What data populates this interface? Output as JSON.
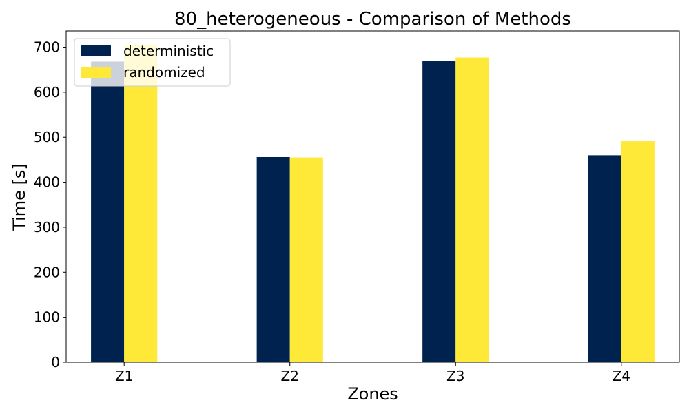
{
  "chart_data": {
    "type": "bar",
    "title": "80_heterogeneous - Comparison of Methods",
    "xlabel": "Zones",
    "ylabel": "Time [s]",
    "categories": [
      "Z1",
      "Z2",
      "Z3",
      "Z4"
    ],
    "series": [
      {
        "name": "deterministic",
        "color": "#00224e",
        "values": [
          668,
          456,
          670,
          460
        ]
      },
      {
        "name": "randomized",
        "color": "#fee838",
        "values": [
          706,
          455,
          677,
          491
        ]
      }
    ],
    "ylim": [
      0,
      736
    ],
    "yticks": [
      0,
      100,
      200,
      300,
      400,
      500,
      600,
      700
    ],
    "grid": false,
    "legend_position": "top-left"
  }
}
